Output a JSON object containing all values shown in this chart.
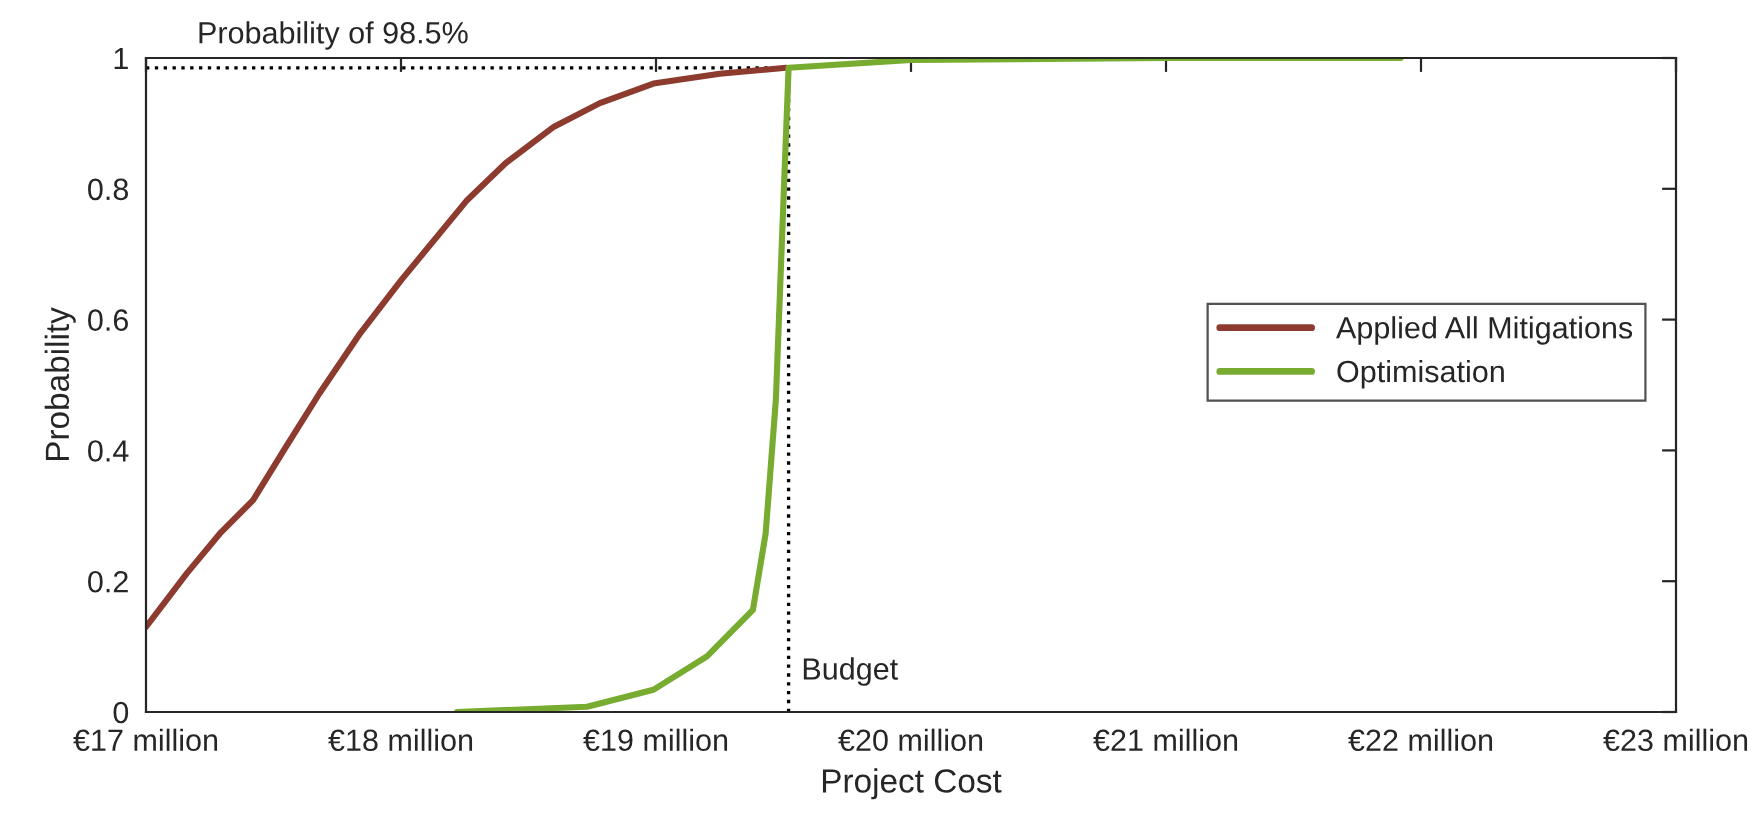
{
  "chart_data": {
    "type": "line",
    "xlabel": "Project Cost",
    "ylabel": "Probability",
    "xlim": [
      17,
      23
    ],
    "ylim": [
      0,
      1
    ],
    "xticks": [
      {
        "value": 17,
        "label": "€17 million"
      },
      {
        "value": 18,
        "label": "€18 million"
      },
      {
        "value": 19,
        "label": "€19 million"
      },
      {
        "value": 20,
        "label": "€20 million"
      },
      {
        "value": 21,
        "label": "€21 million"
      },
      {
        "value": 22,
        "label": "€22 million"
      },
      {
        "value": 23,
        "label": "€23 million"
      }
    ],
    "yticks": [
      0,
      0.2,
      0.4,
      0.6,
      0.8,
      1
    ],
    "series": [
      {
        "name": "Applied All Mitigations",
        "color": "#8c3b2e",
        "x": [
          17.0,
          17.16,
          17.29,
          17.42,
          17.55,
          17.68,
          17.84,
          18.0,
          18.26,
          18.41,
          18.6,
          18.78,
          18.99,
          19.25,
          19.51
        ],
        "values": [
          0.13,
          0.212,
          0.273,
          0.324,
          0.406,
          0.487,
          0.579,
          0.66,
          0.783,
          0.839,
          0.895,
          0.931,
          0.961,
          0.976,
          0.985
        ]
      },
      {
        "name": "Optimisation",
        "color": "#77ac30",
        "x": [
          18.22,
          18.73,
          18.99,
          19.2,
          19.38,
          19.43,
          19.47,
          19.5,
          19.52,
          20.0,
          21.0,
          21.92
        ],
        "values": [
          0,
          0.008,
          0.034,
          0.085,
          0.156,
          0.273,
          0.477,
          0.783,
          0.985,
          0.997,
          1,
          1
        ]
      }
    ],
    "ref_lines": [
      {
        "axis": "y",
        "value": 0.985,
        "label": "Probability of 98.5%",
        "color": "#000000",
        "line_style": "dotted"
      },
      {
        "axis": "x",
        "value": 19.52,
        "label": "Budget",
        "color": "#000000",
        "line_style": "dotted"
      }
    ],
    "legend": "right",
    "grid": false
  }
}
